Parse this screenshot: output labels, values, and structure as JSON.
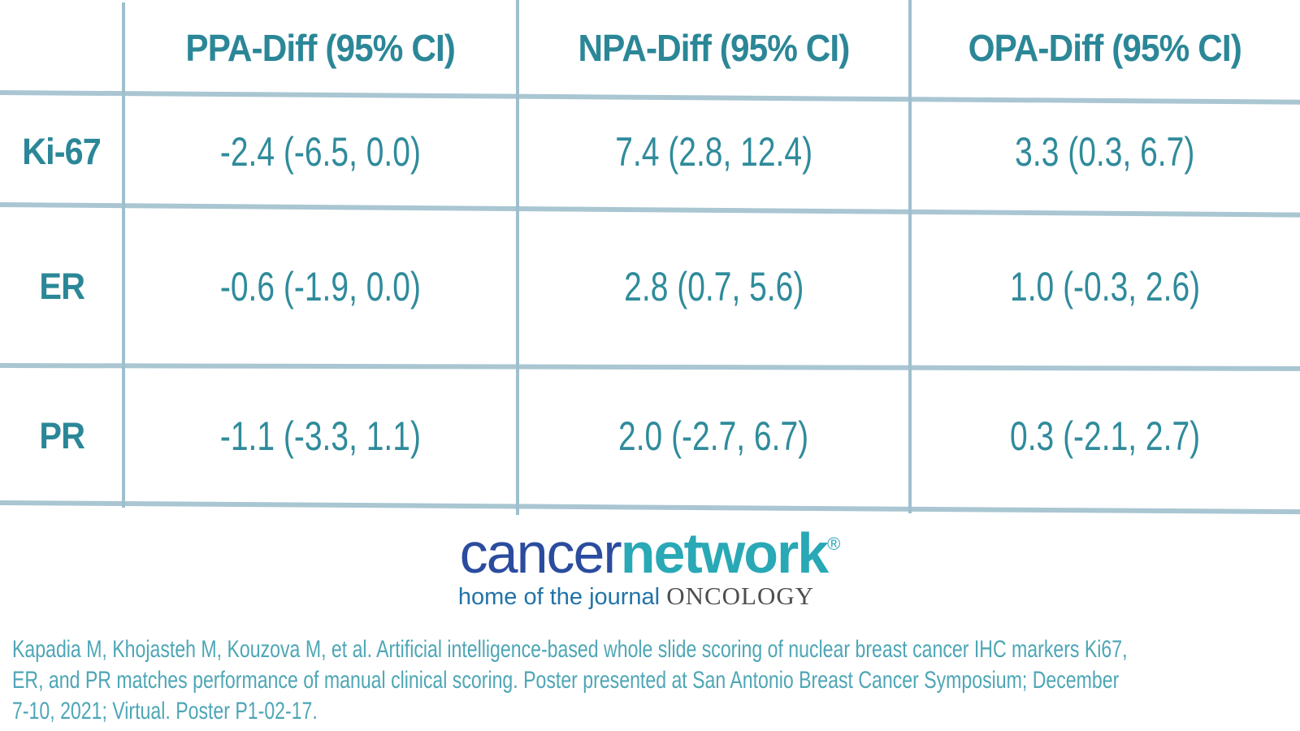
{
  "colors": {
    "table_text": "#2b8797",
    "value_text": "#2f8b9b",
    "grid_line": "#a9c6d2",
    "citation_text": "#4ea6b6",
    "logo_cancer_blue": "#2b4c9e",
    "logo_network_teal": "#29a8b6",
    "logo_tagline_blue": "#2273a8",
    "logo_oncology_gray": "#4d4e50"
  },
  "table": {
    "corner_label": "",
    "columns": [
      "PPA-Diff (95% CI)",
      "NPA-Diff (95% CI)",
      "OPA-Diff (95% CI)"
    ],
    "rows": [
      {
        "label": "Ki-67",
        "values": [
          "-2.4 (-6.5, 0.0)",
          "7.4 (2.8, 12.4)",
          "3.3 (0.3, 6.7)"
        ]
      },
      {
        "label": "ER",
        "values": [
          "-0.6 (-1.9, 0.0)",
          "2.8 (0.7, 5.6)",
          "1.0 (-0.3, 2.6)"
        ]
      },
      {
        "label": "PR",
        "values": [
          "-1.1 (-3.3, 1.1)",
          "2.0 (-2.7, 6.7)",
          "0.3 (-2.1, 2.7)"
        ]
      }
    ]
  },
  "chart_data": {
    "type": "table",
    "title": "",
    "columns": [
      "",
      "PPA-Diff (95% CI)",
      "NPA-Diff (95% CI)",
      "OPA-Diff (95% CI)"
    ],
    "rows": [
      [
        "Ki-67",
        "-2.4 (-6.5, 0.0)",
        "7.4 (2.8, 12.4)",
        "3.3 (0.3, 6.7)"
      ],
      [
        "ER",
        "-0.6 (-1.9, 0.0)",
        "2.8 (0.7, 5.6)",
        "1.0 (-0.3, 2.6)"
      ],
      [
        "PR",
        "-1.1 (-3.3, 1.1)",
        "2.0 (-2.7, 6.7)",
        "0.3 (-2.1, 2.7)"
      ]
    ],
    "parsed": [
      {
        "marker": "Ki-67",
        "PPA_diff": -2.4,
        "PPA_ci": [
          -6.5,
          0.0
        ],
        "NPA_diff": 7.4,
        "NPA_ci": [
          2.8,
          12.4
        ],
        "OPA_diff": 3.3,
        "OPA_ci": [
          0.3,
          6.7
        ]
      },
      {
        "marker": "ER",
        "PPA_diff": -0.6,
        "PPA_ci": [
          -1.9,
          0.0
        ],
        "NPA_diff": 2.8,
        "NPA_ci": [
          0.7,
          5.6
        ],
        "OPA_diff": 1.0,
        "OPA_ci": [
          -0.3,
          2.6
        ]
      },
      {
        "marker": "PR",
        "PPA_diff": -1.1,
        "PPA_ci": [
          -3.3,
          1.1
        ],
        "NPA_diff": 2.0,
        "NPA_ci": [
          -2.7,
          6.7
        ],
        "OPA_diff": 0.3,
        "OPA_ci": [
          -2.1,
          2.7
        ]
      }
    ]
  },
  "logo": {
    "brand_part1": "cancer",
    "brand_part2": "network",
    "registered_mark": "®",
    "tagline": "home of the journal",
    "journal_name": "ONCOLOGY"
  },
  "citation": {
    "lines": [
      "Kapadia M, Khojasteh M, Kouzova M, et al. Artificial intelligence-based whole slide scoring of nuclear breast cancer IHC markers Ki67,",
      "ER, and PR matches performance of manual clinical scoring. Poster presented at San Antonio Breast Cancer Symposium; December",
      "7-10, 2021; Virtual. Poster P1-02-17."
    ],
    "full_text": "Kapadia M, Khojasteh M, Kouzova M, et al. Artificial intelligence-based whole slide scoring of nuclear breast cancer IHC markers Ki67, ER, and PR matches performance of manual clinical scoring. Poster presented at San Antonio Breast Cancer Symposium; December 7-10, 2021; Virtual. Poster P1-02-17."
  }
}
